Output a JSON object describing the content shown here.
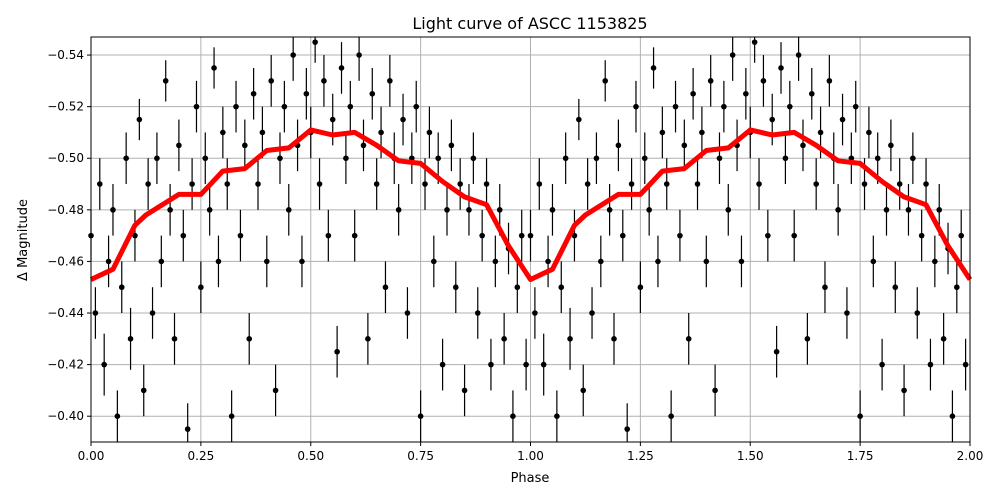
{
  "chart_data": {
    "type": "scatter",
    "title": "Light curve of ASCC 1153825",
    "xlabel": "Phase",
    "ylabel": "Δ Magnitude",
    "xlim": [
      0.0,
      2.0
    ],
    "ylim": [
      -0.547,
      -0.39
    ],
    "y_inverted": true,
    "grid": true,
    "x_ticks": [
      "0.00",
      "0.25",
      "0.50",
      "0.75",
      "1.00",
      "1.25",
      "1.50",
      "1.75",
      "2.00"
    ],
    "x_tick_values": [
      0,
      0.25,
      0.5,
      0.75,
      1.0,
      1.25,
      1.5,
      1.75,
      2.0
    ],
    "y_ticks": [
      "−0.54",
      "−0.52",
      "−0.50",
      "−0.48",
      "−0.46",
      "−0.44",
      "−0.42",
      "−0.40"
    ],
    "y_tick_values": [
      -0.54,
      -0.52,
      -0.5,
      -0.48,
      -0.46,
      -0.44,
      -0.42,
      -0.4
    ],
    "phase_repeat": 2,
    "colors": {
      "points": "#000000",
      "model": "#ff0000",
      "grid": "#b0b0b0"
    },
    "points": [
      [
        0.0,
        -0.47,
        0.01
      ],
      [
        0.01,
        -0.44,
        0.01
      ],
      [
        0.02,
        -0.49,
        0.01
      ],
      [
        0.03,
        -0.42,
        0.012
      ],
      [
        0.04,
        -0.46,
        0.01
      ],
      [
        0.05,
        -0.48,
        0.01
      ],
      [
        0.06,
        -0.4,
        0.01
      ],
      [
        0.07,
        -0.45,
        0.01
      ],
      [
        0.08,
        -0.5,
        0.01
      ],
      [
        0.09,
        -0.43,
        0.012
      ],
      [
        0.1,
        -0.47,
        0.01
      ],
      [
        0.11,
        -0.515,
        0.008
      ],
      [
        0.12,
        -0.41,
        0.01
      ],
      [
        0.13,
        -0.49,
        0.01
      ],
      [
        0.14,
        -0.44,
        0.01
      ],
      [
        0.15,
        -0.5,
        0.01
      ],
      [
        0.16,
        -0.46,
        0.01
      ],
      [
        0.17,
        -0.53,
        0.008
      ],
      [
        0.18,
        -0.48,
        0.01
      ],
      [
        0.19,
        -0.43,
        0.01
      ],
      [
        0.2,
        -0.505,
        0.01
      ],
      [
        0.21,
        -0.47,
        0.01
      ],
      [
        0.22,
        -0.395,
        0.01
      ],
      [
        0.23,
        -0.49,
        0.01
      ],
      [
        0.24,
        -0.52,
        0.01
      ],
      [
        0.25,
        -0.45,
        0.01
      ],
      [
        0.26,
        -0.5,
        0.01
      ],
      [
        0.27,
        -0.48,
        0.01
      ],
      [
        0.28,
        -0.535,
        0.008
      ],
      [
        0.29,
        -0.46,
        0.01
      ],
      [
        0.3,
        -0.51,
        0.01
      ],
      [
        0.31,
        -0.49,
        0.01
      ],
      [
        0.32,
        -0.4,
        0.01
      ],
      [
        0.33,
        -0.52,
        0.01
      ],
      [
        0.34,
        -0.47,
        0.01
      ],
      [
        0.35,
        -0.505,
        0.01
      ],
      [
        0.36,
        -0.43,
        0.01
      ],
      [
        0.37,
        -0.525,
        0.01
      ],
      [
        0.38,
        -0.49,
        0.01
      ],
      [
        0.39,
        -0.51,
        0.01
      ],
      [
        0.4,
        -0.46,
        0.01
      ],
      [
        0.41,
        -0.53,
        0.01
      ],
      [
        0.42,
        -0.41,
        0.01
      ],
      [
        0.43,
        -0.5,
        0.01
      ],
      [
        0.44,
        -0.52,
        0.01
      ],
      [
        0.45,
        -0.48,
        0.01
      ],
      [
        0.46,
        -0.54,
        0.01
      ],
      [
        0.47,
        -0.505,
        0.01
      ],
      [
        0.48,
        -0.46,
        0.01
      ],
      [
        0.49,
        -0.525,
        0.01
      ],
      [
        0.5,
        -0.51,
        0.01
      ],
      [
        0.51,
        -0.545,
        0.008
      ],
      [
        0.52,
        -0.49,
        0.01
      ],
      [
        0.53,
        -0.53,
        0.01
      ],
      [
        0.54,
        -0.47,
        0.01
      ],
      [
        0.55,
        -0.515,
        0.01
      ],
      [
        0.56,
        -0.425,
        0.01
      ],
      [
        0.57,
        -0.535,
        0.01
      ],
      [
        0.58,
        -0.5,
        0.01
      ],
      [
        0.59,
        -0.52,
        0.01
      ],
      [
        0.6,
        -0.47,
        0.01
      ],
      [
        0.61,
        -0.54,
        0.01
      ],
      [
        0.62,
        -0.505,
        0.01
      ],
      [
        0.63,
        -0.43,
        0.01
      ],
      [
        0.64,
        -0.525,
        0.01
      ],
      [
        0.65,
        -0.49,
        0.01
      ],
      [
        0.66,
        -0.51,
        0.01
      ],
      [
        0.67,
        -0.45,
        0.01
      ],
      [
        0.68,
        -0.53,
        0.01
      ],
      [
        0.69,
        -0.5,
        0.01
      ],
      [
        0.7,
        -0.48,
        0.01
      ],
      [
        0.71,
        -0.515,
        0.01
      ],
      [
        0.72,
        -0.44,
        0.01
      ],
      [
        0.73,
        -0.5,
        0.01
      ],
      [
        0.74,
        -0.52,
        0.01
      ],
      [
        0.75,
        -0.4,
        0.01
      ],
      [
        0.76,
        -0.49,
        0.01
      ],
      [
        0.77,
        -0.51,
        0.01
      ],
      [
        0.78,
        -0.46,
        0.01
      ],
      [
        0.79,
        -0.5,
        0.01
      ],
      [
        0.8,
        -0.42,
        0.01
      ],
      [
        0.81,
        -0.48,
        0.01
      ],
      [
        0.82,
        -0.505,
        0.01
      ],
      [
        0.83,
        -0.45,
        0.01
      ],
      [
        0.84,
        -0.49,
        0.01
      ],
      [
        0.85,
        -0.41,
        0.01
      ],
      [
        0.86,
        -0.48,
        0.01
      ],
      [
        0.87,
        -0.5,
        0.01
      ],
      [
        0.88,
        -0.44,
        0.01
      ],
      [
        0.89,
        -0.47,
        0.01
      ],
      [
        0.9,
        -0.49,
        0.01
      ],
      [
        0.91,
        -0.42,
        0.01
      ],
      [
        0.92,
        -0.46,
        0.01
      ],
      [
        0.93,
        -0.48,
        0.01
      ],
      [
        0.94,
        -0.43,
        0.01
      ],
      [
        0.95,
        -0.465,
        0.01
      ],
      [
        0.96,
        -0.4,
        0.01
      ],
      [
        0.97,
        -0.45,
        0.01
      ],
      [
        0.98,
        -0.47,
        0.01
      ],
      [
        0.99,
        -0.42,
        0.01
      ]
    ],
    "model": {
      "phase": [
        0.0,
        0.05,
        0.1,
        0.125,
        0.2,
        0.25,
        0.3,
        0.35,
        0.4,
        0.45,
        0.5,
        0.55,
        0.6,
        0.65,
        0.7,
        0.75,
        0.8,
        0.85,
        0.9,
        0.95,
        1.0
      ],
      "mag": [
        -0.453,
        -0.457,
        -0.474,
        -0.478,
        -0.486,
        -0.486,
        -0.495,
        -0.496,
        -0.503,
        -0.504,
        -0.511,
        -0.509,
        -0.51,
        -0.505,
        -0.499,
        -0.498,
        -0.491,
        -0.485,
        -0.482,
        -0.466,
        -0.453
      ]
    }
  }
}
